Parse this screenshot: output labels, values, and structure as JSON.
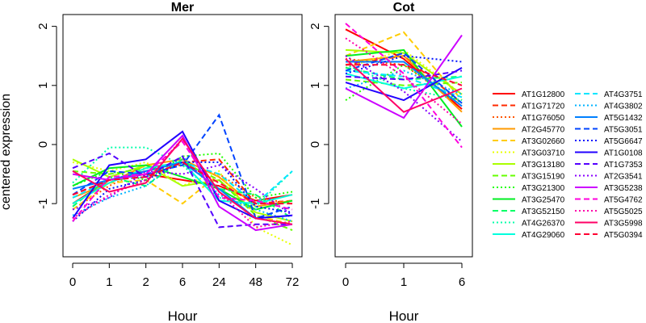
{
  "chart_data": [
    {
      "type": "line",
      "title": "Mer",
      "xlabel": "Hour",
      "ylabel": "centered expression",
      "categories": [
        "0",
        "1",
        "2",
        "6",
        "24",
        "48",
        "72"
      ],
      "yticks": [
        "-1",
        "0",
        "1",
        "2"
      ],
      "ylim": [
        -1.9,
        2.2
      ],
      "grid": false,
      "series": [
        {
          "name": "AT1G12800",
          "values": [
            -1.0,
            -0.6,
            -0.5,
            -0.6,
            -0.7,
            -0.95,
            -0.85
          ]
        },
        {
          "name": "AT1G71720",
          "values": [
            -0.85,
            -0.6,
            -0.45,
            -0.3,
            -0.25,
            -1.0,
            -0.95
          ]
        },
        {
          "name": "AT1G76050",
          "values": [
            -1.1,
            -0.7,
            -0.4,
            -0.35,
            -0.5,
            -0.9,
            -1.0
          ]
        },
        {
          "name": "AT2G45770",
          "values": [
            -0.9,
            -0.65,
            -0.35,
            -0.25,
            -0.55,
            -1.05,
            -0.95
          ]
        },
        {
          "name": "AT3G02660",
          "values": [
            -1.1,
            -0.65,
            -0.6,
            -1.0,
            -0.5,
            -1.2,
            -1.35
          ]
        },
        {
          "name": "AT3G03710",
          "values": [
            -0.3,
            -0.45,
            -0.3,
            -0.7,
            -0.45,
            -1.4,
            -1.7
          ]
        },
        {
          "name": "AT3G13180",
          "values": [
            -0.25,
            -0.55,
            -0.35,
            -0.7,
            -0.6,
            -1.15,
            -1.3
          ]
        },
        {
          "name": "AT3G15190",
          "values": [
            -0.45,
            -0.5,
            -0.4,
            -0.3,
            -0.6,
            -1.2,
            -1.45
          ]
        },
        {
          "name": "AT3G21300",
          "values": [
            -0.7,
            -0.45,
            -0.6,
            -0.2,
            -0.15,
            -0.9,
            -0.8
          ]
        },
        {
          "name": "AT3G25470",
          "values": [
            -0.7,
            -0.4,
            -0.35,
            -0.55,
            -0.75,
            -1.1,
            -0.95
          ]
        },
        {
          "name": "AT3G52150",
          "values": [
            -1.05,
            -0.55,
            -0.7,
            -0.25,
            -0.75,
            -0.85,
            -1.25
          ]
        },
        {
          "name": "AT4G26370",
          "values": [
            -0.65,
            -0.05,
            -0.05,
            -0.35,
            -0.9,
            -1.05,
            -0.45
          ]
        },
        {
          "name": "AT4G29060",
          "values": [
            -1.0,
            -0.65,
            -0.4,
            -0.3,
            -0.95,
            -1.0,
            -0.85
          ]
        },
        {
          "name": "AT4G3751",
          "values": [
            -0.9,
            -0.6,
            -0.55,
            -0.3,
            -0.5,
            -1.0,
            -0.45
          ]
        },
        {
          "name": "AT4G3802",
          "values": [
            -1.2,
            -0.9,
            -0.7,
            -0.2,
            -0.85,
            -1.1,
            -1.3
          ]
        },
        {
          "name": "AT5G1432",
          "values": [
            -0.75,
            -0.6,
            -0.45,
            -0.3,
            -0.75,
            -1.25,
            -1.2
          ]
        },
        {
          "name": "AT5G3051",
          "values": [
            -0.85,
            -0.45,
            -0.5,
            -0.35,
            0.5,
            -1.25,
            -1.05
          ]
        },
        {
          "name": "AT5G6647",
          "values": [
            -1.3,
            -0.75,
            -0.6,
            -0.3,
            -0.3,
            -1.05,
            -1.15
          ]
        },
        {
          "name": "AT1G0108",
          "values": [
            -1.25,
            -0.35,
            -0.25,
            0.22,
            -0.95,
            -1.25,
            -1.2
          ]
        },
        {
          "name": "AT1G7353",
          "values": [
            -0.4,
            -0.15,
            -0.55,
            -0.2,
            -1.4,
            -1.35,
            -1.35
          ]
        },
        {
          "name": "AT2G3541",
          "values": [
            -1.1,
            -0.9,
            -0.45,
            -0.5,
            -0.35,
            -0.75,
            -1.2
          ]
        },
        {
          "name": "AT3G5238",
          "values": [
            -0.5,
            -0.6,
            -0.5,
            0.15,
            -1.05,
            -1.45,
            -1.35
          ]
        },
        {
          "name": "AT5G4762",
          "values": [
            -1.3,
            -0.55,
            -0.5,
            0.05,
            -0.9,
            -0.95,
            -1.1
          ]
        },
        {
          "name": "AT5G5025",
          "values": [
            -1.25,
            -0.85,
            -0.6,
            0.1,
            -0.8,
            -1.4,
            -1.3
          ]
        },
        {
          "name": "AT3G5998",
          "values": [
            -0.45,
            -0.8,
            -0.65,
            0.1,
            -0.8,
            -1.25,
            -1.35
          ]
        },
        {
          "name": "AT5G0394",
          "values": [
            -0.85,
            -0.6,
            -0.55,
            -0.3,
            -0.65,
            -1.0,
            -1.0
          ]
        }
      ]
    },
    {
      "type": "line",
      "title": "Cot",
      "xlabel": "Hour",
      "ylabel": "",
      "categories": [
        "0",
        "1",
        "6"
      ],
      "yticks": [
        "-1",
        "0",
        "1",
        "2"
      ],
      "ylim": [
        -1.9,
        2.2
      ],
      "grid": false,
      "series": [
        {
          "name": "AT1G12800",
          "values": [
            1.95,
            1.45,
            0.6
          ]
        },
        {
          "name": "AT1G71720",
          "values": [
            1.35,
            1.5,
            0.7
          ]
        },
        {
          "name": "AT1G76050",
          "values": [
            1.45,
            1.35,
            0.65
          ]
        },
        {
          "name": "AT2G45770",
          "values": [
            1.4,
            1.5,
            0.55
          ]
        },
        {
          "name": "AT3G02660",
          "values": [
            1.5,
            1.9,
            0.75
          ]
        },
        {
          "name": "AT3G03710",
          "values": [
            1.3,
            1.6,
            0.85
          ]
        },
        {
          "name": "AT3G13180",
          "values": [
            1.6,
            1.55,
            0.85
          ]
        },
        {
          "name": "AT3G15190",
          "values": [
            1.1,
            1.0,
            1.05
          ]
        },
        {
          "name": "AT3G21300",
          "values": [
            0.75,
            1.35,
            0.7
          ]
        },
        {
          "name": "AT3G25470",
          "values": [
            1.5,
            1.6,
            0.3
          ]
        },
        {
          "name": "AT3G52150",
          "values": [
            1.3,
            1.1,
            1.15
          ]
        },
        {
          "name": "AT4G26370",
          "values": [
            1.35,
            0.95,
            0.75
          ]
        },
        {
          "name": "AT4G29060",
          "values": [
            1.2,
            0.95,
            1.15
          ]
        },
        {
          "name": "AT4G3751",
          "values": [
            1.25,
            1.15,
            0.8
          ]
        },
        {
          "name": "AT4G3802",
          "values": [
            0.95,
            1.25,
            0.85
          ]
        },
        {
          "name": "AT5G1432",
          "values": [
            1.4,
            1.4,
            0.65
          ]
        },
        {
          "name": "AT5G3051",
          "values": [
            1.25,
            1.55,
            0.7
          ]
        },
        {
          "name": "AT5G6647",
          "values": [
            1.2,
            1.5,
            1.4
          ]
        },
        {
          "name": "AT1G0108",
          "values": [
            1.05,
            0.75,
            1.3
          ]
        },
        {
          "name": "AT1G7353",
          "values": [
            1.15,
            1.1,
            1.25
          ]
        },
        {
          "name": "AT2G3541",
          "values": [
            1.5,
            0.9,
            0.05
          ]
        },
        {
          "name": "AT3G5238",
          "values": [
            0.95,
            0.45,
            1.85
          ]
        },
        {
          "name": "AT5G4762",
          "values": [
            2.05,
            1.2,
            -0.05
          ]
        },
        {
          "name": "AT5G5025",
          "values": [
            1.8,
            1.15,
            0.35
          ]
        },
        {
          "name": "AT3G5998",
          "values": [
            1.45,
            0.55,
            0.95
          ]
        },
        {
          "name": "AT5G0394",
          "values": [
            1.35,
            1.35,
            1.0
          ]
        }
      ]
    }
  ],
  "legend": {
    "placement": "right",
    "entries": [
      {
        "label": "AT1G12800",
        "color": "#ff0000",
        "dash": "solid"
      },
      {
        "label": "AT1G71720",
        "color": "#ff2a00",
        "dash": "dashed"
      },
      {
        "label": "AT1G76050",
        "color": "#ff5500",
        "dash": "dotted"
      },
      {
        "label": "AT2G45770",
        "color": "#ff9a00",
        "dash": "solid"
      },
      {
        "label": "AT3G02660",
        "color": "#ffcc00",
        "dash": "dashed"
      },
      {
        "label": "AT3G03710",
        "color": "#e8ff00",
        "dash": "dotted"
      },
      {
        "label": "AT3G13180",
        "color": "#aaff00",
        "dash": "solid"
      },
      {
        "label": "AT3G15190",
        "color": "#66ff00",
        "dash": "dashed"
      },
      {
        "label": "AT3G21300",
        "color": "#22ff00",
        "dash": "dotted"
      },
      {
        "label": "AT3G25470",
        "color": "#00ee22",
        "dash": "solid"
      },
      {
        "label": "AT3G52150",
        "color": "#00ff66",
        "dash": "dashed"
      },
      {
        "label": "AT4G26370",
        "color": "#00ffaa",
        "dash": "dotted"
      },
      {
        "label": "AT4G29060",
        "color": "#00ffdd",
        "dash": "solid"
      },
      {
        "label": "AT4G3751",
        "color": "#00e6ff",
        "dash": "dashed"
      },
      {
        "label": "AT4G3802",
        "color": "#00b3ff",
        "dash": "dotted"
      },
      {
        "label": "AT5G1432",
        "color": "#0080ff",
        "dash": "solid"
      },
      {
        "label": "AT5G3051",
        "color": "#0044ff",
        "dash": "dashed"
      },
      {
        "label": "AT5G6647",
        "color": "#0011ff",
        "dash": "dotted"
      },
      {
        "label": "AT1G0108",
        "color": "#2200ff",
        "dash": "solid"
      },
      {
        "label": "AT1G7353",
        "color": "#5500ff",
        "dash": "dashed"
      },
      {
        "label": "AT2G3541",
        "color": "#8800ff",
        "dash": "dotted"
      },
      {
        "label": "AT3G5238",
        "color": "#cc00ff",
        "dash": "solid"
      },
      {
        "label": "AT5G4762",
        "color": "#ff00dd",
        "dash": "dashed"
      },
      {
        "label": "AT5G5025",
        "color": "#ff00aa",
        "dash": "dotted"
      },
      {
        "label": "AT3G5998",
        "color": "#ff0066",
        "dash": "solid"
      },
      {
        "label": "AT5G0394",
        "color": "#ff0033",
        "dash": "dashed"
      }
    ]
  }
}
